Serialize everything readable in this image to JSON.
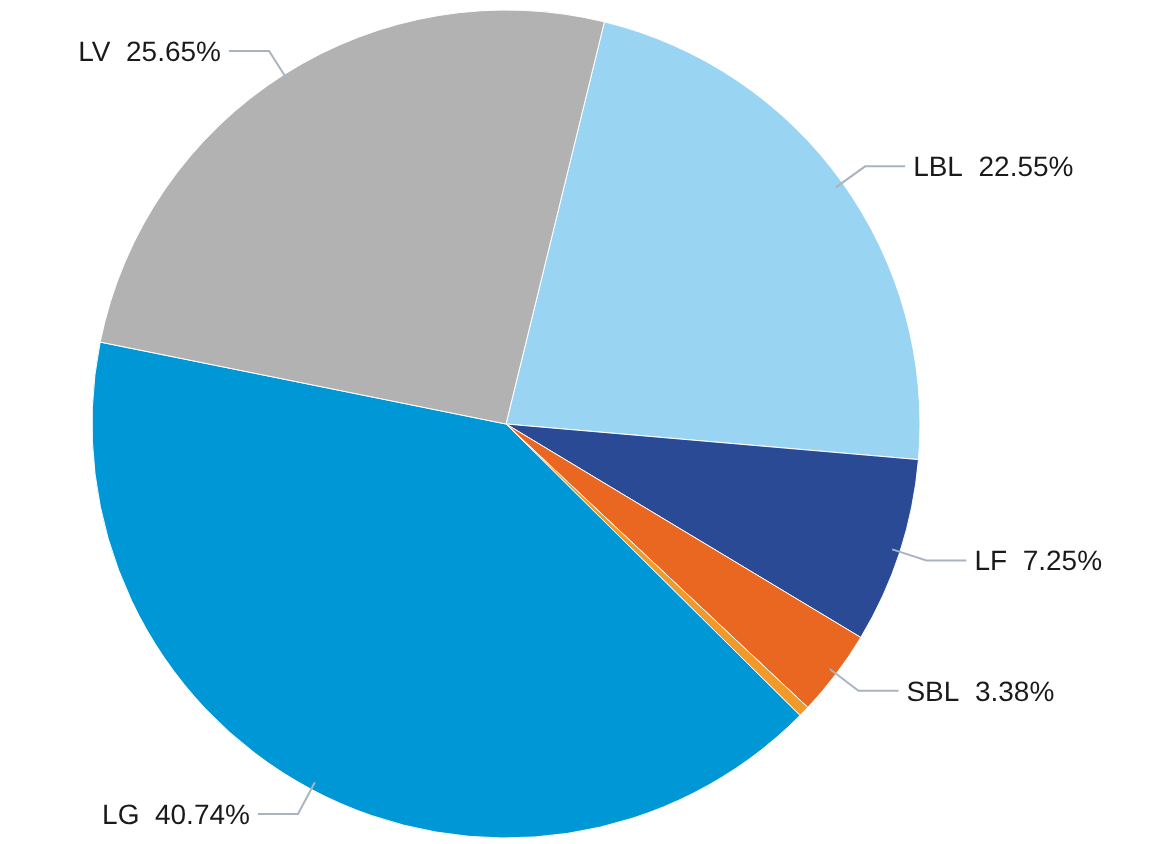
{
  "chart_data": {
    "type": "pie",
    "categories": [
      "LBL",
      "LF",
      "SBL",
      null,
      "LG",
      "LV"
    ],
    "values": [
      22.55,
      7.25,
      3.38,
      0.43,
      40.74,
      25.65
    ],
    "colors": [
      "#99d4f3",
      "#2b4a96",
      "#ea6721",
      "#f09a2c",
      "#0097d6",
      "#b2b2b2"
    ],
    "value_labels": [
      "22.55%",
      "7.25%",
      "3.38%",
      null,
      "40.74%",
      "25.65%"
    ],
    "legend": false
  }
}
